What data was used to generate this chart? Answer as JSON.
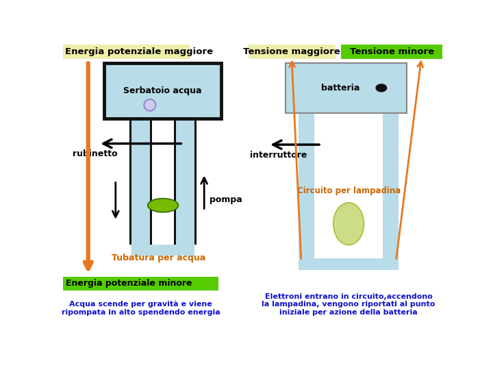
{
  "bg_color": "#ffffff",
  "header_left_color": "#eeeeaa",
  "header_mid_color": "#eeeeaa",
  "header_right_color": "#55cc00",
  "water_color": "#b8dce8",
  "pipe_color": "#b8dce8",
  "tank_border_color": "#111111",
  "orange_color": "#e87820",
  "black_color": "#000000",
  "green_ellipse_color": "#77bb00",
  "yellow_ellipse_color": "#ccdd88",
  "purple_color": "#9988cc",
  "black_dot_color": "#111111",
  "text_blue_color": "#1111cc",
  "text_orange_color": "#cc6600",
  "text_black_color": "#000000",
  "label_energia_maggiore": "Energia potenziale maggiore",
  "label_tensione_maggiore": "Tensione maggiore",
  "label_tensione_minore": "Tensione minore",
  "label_serbatoio": "Serbatoio acqua",
  "label_batteria": "batteria",
  "label_rubinetto": "rubinetto",
  "label_interruttore": "interruttore",
  "label_pompa": "pompa",
  "label_circuito": "Circuito per lampadina",
  "label_tubatura": "Tubatura per acqua",
  "label_energia_minore": "Energia potenziale minore",
  "label_acqua_text": "Acqua scende per gravità e viene\nripompata in alto spendendo energia",
  "label_elettroni_text": "Elettroni entrano in circuito,accendono\nla lampadina, vengono riportati al punto\niniziale per azione della batteria"
}
